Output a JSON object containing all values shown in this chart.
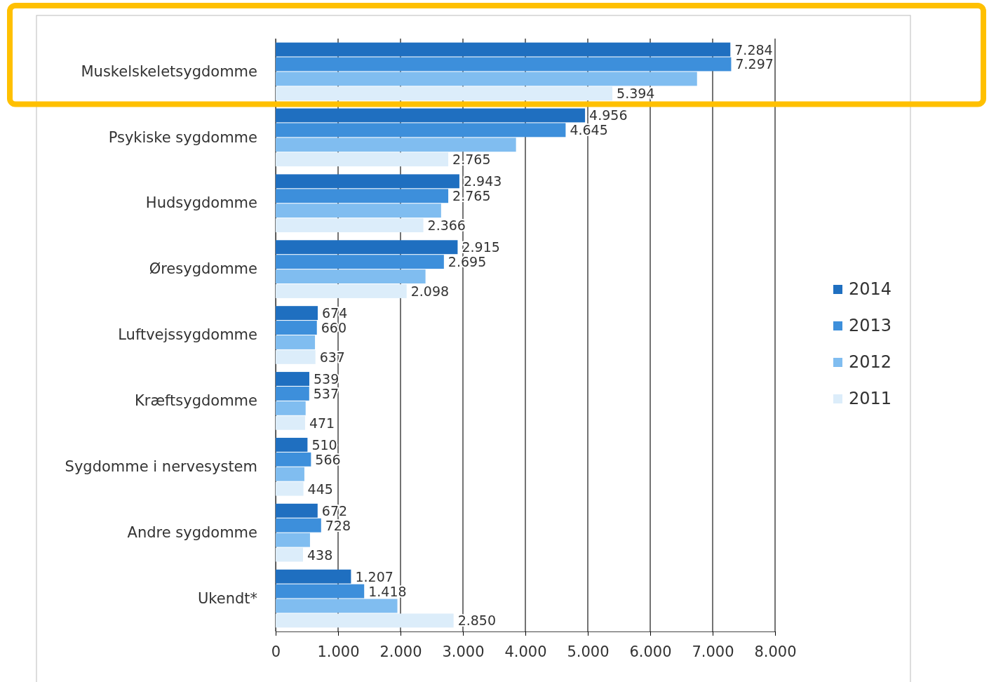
{
  "chart_data": {
    "type": "bar",
    "orientation": "horizontal",
    "categories": [
      "Muskelskeletsygdomme",
      "Psykiske sygdomme",
      "Hudsygdomme",
      "Øresygdomme",
      "Luftvejssygdomme",
      "Kræftsygdomme",
      "Sygdomme i nervesystem",
      "Andre sygdomme",
      "Ukendt*"
    ],
    "series": [
      {
        "name": "2014",
        "color": "#1f6fc0",
        "values": [
          7284,
          4956,
          2943,
          2915,
          674,
          539,
          510,
          672,
          1207
        ],
        "value_labels": [
          "7.284",
          "4.956",
          "2.943",
          "2.915",
          "674",
          "539",
          "510",
          "672",
          "1.207"
        ]
      },
      {
        "name": "2013",
        "color": "#3d8fdb",
        "values": [
          7297,
          4645,
          2765,
          2695,
          660,
          537,
          566,
          728,
          1418
        ],
        "value_labels": [
          "7.297",
          "4.645",
          "2.765",
          "2.695",
          "660",
          "537",
          "566",
          "728",
          "1.418"
        ]
      },
      {
        "name": "2012",
        "color": "#80bdf0",
        "values": [
          6750,
          3850,
          2650,
          2400,
          630,
          480,
          460,
          550,
          1950
        ]
      },
      {
        "name": "2011",
        "color": "#dcedfa",
        "values": [
          5394,
          2765,
          2366,
          2098,
          637,
          471,
          445,
          438,
          2850
        ],
        "value_labels": [
          "5.394",
          "2.765",
          "2.366",
          "2.098",
          "637",
          "471",
          "445",
          "438",
          "2.850"
        ]
      }
    ],
    "xlim": [
      0,
      8000
    ],
    "xticks": [
      {
        "value": 0,
        "label": "0"
      },
      {
        "value": 1000,
        "label": "1.000"
      },
      {
        "value": 2000,
        "label": "2.000"
      },
      {
        "value": 3000,
        "label": "3.000"
      },
      {
        "value": 4000,
        "label": "4.000"
      },
      {
        "value": 5000,
        "label": "5.000"
      },
      {
        "value": 6000,
        "label": "6.000"
      },
      {
        "value": 7000,
        "label": "7.000"
      },
      {
        "value": 8000,
        "label": "8.000"
      }
    ],
    "grid": "x",
    "legend": "right"
  }
}
